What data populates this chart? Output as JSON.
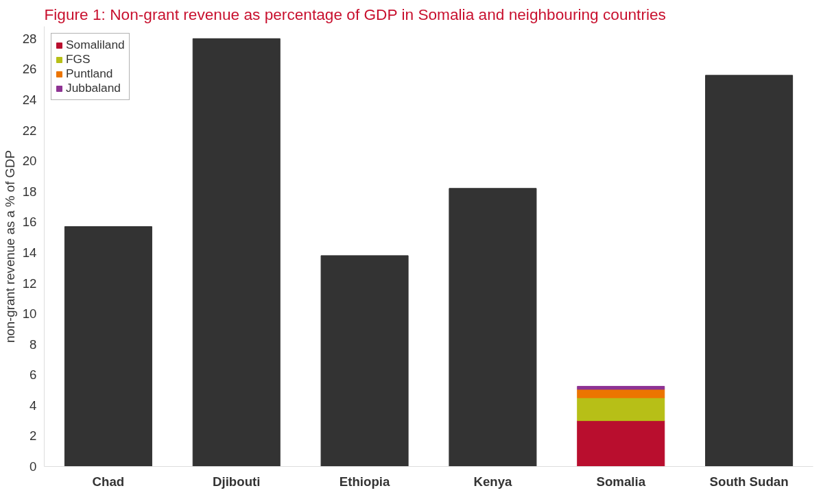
{
  "chart_data": {
    "type": "bar",
    "title": "Figure 1: Non-grant revenue as percentage of GDP in Somalia and neighbouring countries",
    "ylabel": "non-grant revenue as a % of GDP",
    "categories": [
      "Chad",
      "Djibouti",
      "Ethiopia",
      "Kenya",
      "Somalia",
      "South Sudan"
    ],
    "stacked": true,
    "legend": "top left",
    "grid": false,
    "ylim": [
      0,
      28.8
    ],
    "yticks": [
      0,
      2,
      4,
      6,
      8,
      10,
      12,
      14,
      16,
      18,
      20,
      22,
      24,
      26,
      28
    ],
    "series": [
      {
        "color": "#333333",
        "values": [
          15.7,
          28.0,
          13.8,
          18.2,
          null,
          25.6
        ]
      },
      {
        "name": "Somaliland",
        "color": "#b90e2e",
        "values": [
          null,
          null,
          null,
          null,
          3.0,
          null
        ]
      },
      {
        "name": "FGS",
        "color": "#b7bf17",
        "values": [
          null,
          null,
          null,
          null,
          1.5,
          null
        ]
      },
      {
        "name": "Puntland",
        "color": "#ec7500",
        "values": [
          null,
          null,
          null,
          null,
          0.55,
          null
        ]
      },
      {
        "name": "Jubbaland",
        "color": "#8e3393",
        "values": [
          null,
          null,
          null,
          null,
          0.2,
          null
        ]
      }
    ]
  }
}
